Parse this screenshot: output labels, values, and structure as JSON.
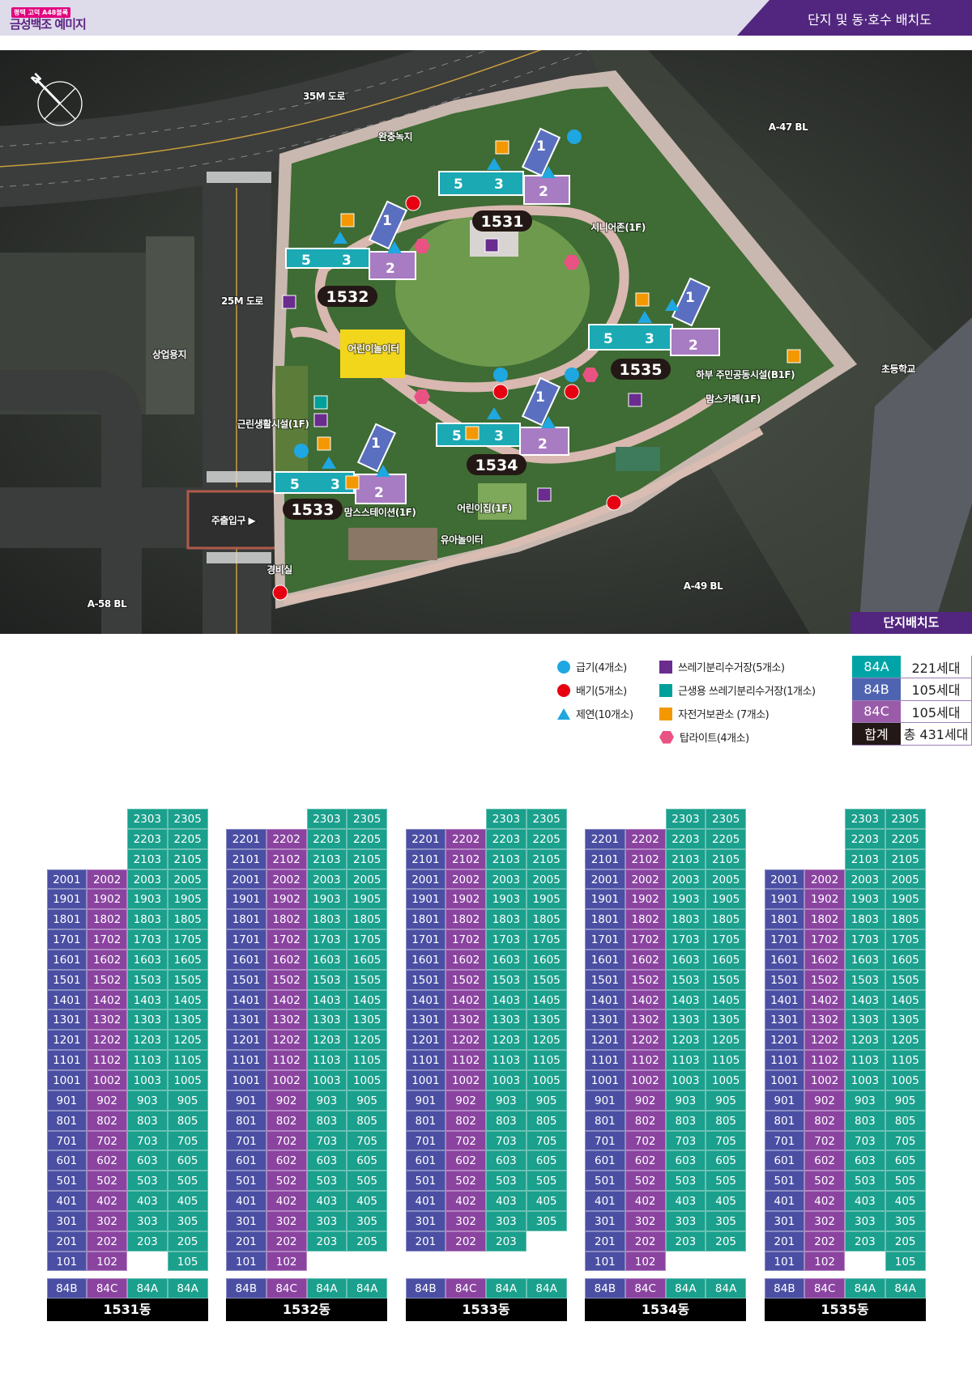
{
  "header": {
    "logo_badge": "평택 고덕 A48블록",
    "logo_name": "금성백조 예미지",
    "title": "단지 및 동·호수 배치도"
  },
  "map": {
    "badge": "단지배치도",
    "compass": "north-compass-icon",
    "labels": {
      "road_35m": "35M 도로",
      "buffer_green": "완충녹지",
      "a47": "A-47 BL",
      "road_25m": "25M 도로",
      "commercial": "상업용지",
      "school": "초등학교",
      "playground": "어린이놀이터",
      "senior": "시니어존(1F)",
      "community": "하부 주민공동시설(B1F)",
      "moms_cafe": "맘스카페(1F)",
      "neighborhood": "근린생활시설(1F)",
      "main_entrance": "주출입구 ▶",
      "moms_station": "맘스스테이션(1F)",
      "daycare": "어린이집(1F)",
      "toddler_play": "유아놀이터",
      "guard": "경비실",
      "a58": "A-58 BL",
      "a49": "A-49 BL"
    },
    "building_tags": [
      "1531",
      "1532",
      "1533",
      "1534",
      "1535"
    ],
    "line_numbers": [
      "1",
      "2",
      "3",
      "5"
    ]
  },
  "legend": {
    "supply": "급기(4개소)",
    "exhaust": "배기(5개소)",
    "smoke": "제연(10개소)",
    "recycle": "쓰레기분리수거장(5개소)",
    "retail_recycle": "근생용 쓰레기분리수거장(1개소)",
    "bike": "자전거보관소 (7개소)",
    "toplight": "탑라이트(4개소)",
    "colors": {
      "supply": "#1ea7e1",
      "exhaust": "#e60012",
      "smoke": "#1ea7e1",
      "recycle": "#6a2c8e",
      "retail_recycle": "#00a09a",
      "bike": "#f39800",
      "toplight": "#e95383"
    }
  },
  "summary": [
    {
      "type": "84A",
      "count": "221세대",
      "color": "#00a4a6"
    },
    {
      "type": "84B",
      "count": "105세대",
      "color": "#4f64b0"
    },
    {
      "type": "84C",
      "count": "105세대",
      "color": "#9a5ca8"
    },
    {
      "type": "합계",
      "count": "총 431세대",
      "color": "#231815"
    }
  ],
  "type_colors": {
    "84A": "#1aa08c",
    "84B": "#4a4fa3",
    "84C": "#8a44a0",
    "blank": "#9a9a9a"
  },
  "buildings": [
    {
      "name": "1531동",
      "types": [
        "84B",
        "84C",
        "84A",
        "84A"
      ],
      "rows": [
        [
          "",
          "",
          "2303",
          "2305"
        ],
        [
          "",
          "",
          "2203",
          "2205"
        ],
        [
          "",
          "",
          "2103",
          "2105"
        ],
        [
          "2001",
          "2002",
          "2003",
          "2005"
        ],
        [
          "1901",
          "1902",
          "1903",
          "1905"
        ],
        [
          "1801",
          "1802",
          "1803",
          "1805"
        ],
        [
          "1701",
          "1702",
          "1703",
          "1705"
        ],
        [
          "1601",
          "1602",
          "1603",
          "1605"
        ],
        [
          "1501",
          "1502",
          "1503",
          "1505"
        ],
        [
          "1401",
          "1402",
          "1403",
          "1405"
        ],
        [
          "1301",
          "1302",
          "1303",
          "1305"
        ],
        [
          "1201",
          "1202",
          "1203",
          "1205"
        ],
        [
          "1101",
          "1102",
          "1103",
          "1105"
        ],
        [
          "1001",
          "1002",
          "1003",
          "1005"
        ],
        [
          "901",
          "902",
          "903",
          "905"
        ],
        [
          "801",
          "802",
          "803",
          "805"
        ],
        [
          "701",
          "702",
          "703",
          "705"
        ],
        [
          "601",
          "602",
          "603",
          "605"
        ],
        [
          "501",
          "502",
          "503",
          "505"
        ],
        [
          "401",
          "402",
          "403",
          "405"
        ],
        [
          "301",
          "302",
          "303",
          "305"
        ],
        [
          "201",
          "202",
          "203",
          "205"
        ],
        [
          "101",
          "102",
          "X",
          "105"
        ]
      ]
    },
    {
      "name": "1532동",
      "types": [
        "84B",
        "84C",
        "84A",
        "84A"
      ],
      "rows": [
        [
          "",
          "",
          "2303",
          "2305"
        ],
        [
          "2201",
          "2202",
          "2203",
          "2205"
        ],
        [
          "2101",
          "2102",
          "2103",
          "2105"
        ],
        [
          "2001",
          "2002",
          "2003",
          "2005"
        ],
        [
          "1901",
          "1902",
          "1903",
          "1905"
        ],
        [
          "1801",
          "1802",
          "1803",
          "1805"
        ],
        [
          "1701",
          "1702",
          "1703",
          "1705"
        ],
        [
          "1601",
          "1602",
          "1603",
          "1605"
        ],
        [
          "1501",
          "1502",
          "1503",
          "1505"
        ],
        [
          "1401",
          "1402",
          "1403",
          "1405"
        ],
        [
          "1301",
          "1302",
          "1303",
          "1305"
        ],
        [
          "1201",
          "1202",
          "1203",
          "1205"
        ],
        [
          "1101",
          "1102",
          "1103",
          "1105"
        ],
        [
          "1001",
          "1002",
          "1003",
          "1005"
        ],
        [
          "901",
          "902",
          "903",
          "905"
        ],
        [
          "801",
          "802",
          "803",
          "805"
        ],
        [
          "701",
          "702",
          "703",
          "705"
        ],
        [
          "601",
          "602",
          "603",
          "605"
        ],
        [
          "501",
          "502",
          "503",
          "505"
        ],
        [
          "401",
          "402",
          "403",
          "405"
        ],
        [
          "301",
          "302",
          "303",
          "305"
        ],
        [
          "201",
          "202",
          "203",
          "205"
        ],
        [
          "101",
          "102",
          "X",
          "X"
        ]
      ]
    },
    {
      "name": "1533동",
      "types": [
        "84B",
        "84C",
        "84A",
        "84A"
      ],
      "rows": [
        [
          "",
          "",
          "2303",
          "2305"
        ],
        [
          "2201",
          "2202",
          "2203",
          "2205"
        ],
        [
          "2101",
          "2102",
          "2103",
          "2105"
        ],
        [
          "2001",
          "2002",
          "2003",
          "2005"
        ],
        [
          "1901",
          "1902",
          "1903",
          "1905"
        ],
        [
          "1801",
          "1802",
          "1803",
          "1805"
        ],
        [
          "1701",
          "1702",
          "1703",
          "1705"
        ],
        [
          "1601",
          "1602",
          "1603",
          "1605"
        ],
        [
          "1501",
          "1502",
          "1503",
          "1505"
        ],
        [
          "1401",
          "1402",
          "1403",
          "1405"
        ],
        [
          "1301",
          "1302",
          "1303",
          "1305"
        ],
        [
          "1201",
          "1202",
          "1203",
          "1205"
        ],
        [
          "1101",
          "1102",
          "1103",
          "1105"
        ],
        [
          "1001",
          "1002",
          "1003",
          "1005"
        ],
        [
          "901",
          "902",
          "903",
          "905"
        ],
        [
          "801",
          "802",
          "803",
          "805"
        ],
        [
          "701",
          "702",
          "703",
          "705"
        ],
        [
          "601",
          "602",
          "603",
          "605"
        ],
        [
          "501",
          "502",
          "503",
          "505"
        ],
        [
          "401",
          "402",
          "403",
          "405"
        ],
        [
          "301",
          "302",
          "303",
          "305"
        ],
        [
          "201",
          "202",
          "203",
          "X"
        ],
        [
          "X",
          "X",
          "X",
          "X"
        ]
      ]
    },
    {
      "name": "1534동",
      "types": [
        "84B",
        "84C",
        "84A",
        "84A"
      ],
      "rows": [
        [
          "",
          "",
          "2303",
          "2305"
        ],
        [
          "2201",
          "2202",
          "2203",
          "2205"
        ],
        [
          "2101",
          "2102",
          "2103",
          "2105"
        ],
        [
          "2001",
          "2002",
          "2003",
          "2005"
        ],
        [
          "1901",
          "1902",
          "1903",
          "1905"
        ],
        [
          "1801",
          "1802",
          "1803",
          "1805"
        ],
        [
          "1701",
          "1702",
          "1703",
          "1705"
        ],
        [
          "1601",
          "1602",
          "1603",
          "1605"
        ],
        [
          "1501",
          "1502",
          "1503",
          "1505"
        ],
        [
          "1401",
          "1402",
          "1403",
          "1405"
        ],
        [
          "1301",
          "1302",
          "1303",
          "1305"
        ],
        [
          "1201",
          "1202",
          "1203",
          "1205"
        ],
        [
          "1101",
          "1102",
          "1103",
          "1105"
        ],
        [
          "1001",
          "1002",
          "1003",
          "1005"
        ],
        [
          "901",
          "902",
          "903",
          "905"
        ],
        [
          "801",
          "802",
          "803",
          "805"
        ],
        [
          "701",
          "702",
          "703",
          "705"
        ],
        [
          "601",
          "602",
          "603",
          "605"
        ],
        [
          "501",
          "502",
          "503",
          "505"
        ],
        [
          "401",
          "402",
          "403",
          "405"
        ],
        [
          "301",
          "302",
          "303",
          "305"
        ],
        [
          "201",
          "202",
          "203",
          "205"
        ],
        [
          "101",
          "102",
          "X",
          "X"
        ]
      ]
    },
    {
      "name": "1535동",
      "types": [
        "84B",
        "84C",
        "84A",
        "84A"
      ],
      "rows": [
        [
          "",
          "",
          "2303",
          "2305"
        ],
        [
          "",
          "",
          "2203",
          "2205"
        ],
        [
          "",
          "",
          "2103",
          "2105"
        ],
        [
          "2001",
          "2002",
          "2003",
          "2005"
        ],
        [
          "1901",
          "1902",
          "1903",
          "1905"
        ],
        [
          "1801",
          "1802",
          "1803",
          "1805"
        ],
        [
          "1701",
          "1702",
          "1703",
          "1705"
        ],
        [
          "1601",
          "1602",
          "1603",
          "1605"
        ],
        [
          "1501",
          "1502",
          "1503",
          "1505"
        ],
        [
          "1401",
          "1402",
          "1403",
          "1405"
        ],
        [
          "1301",
          "1302",
          "1303",
          "1305"
        ],
        [
          "1201",
          "1202",
          "1203",
          "1205"
        ],
        [
          "1101",
          "1102",
          "1103",
          "1105"
        ],
        [
          "1001",
          "1002",
          "1003",
          "1005"
        ],
        [
          "901",
          "902",
          "903",
          "905"
        ],
        [
          "801",
          "802",
          "803",
          "805"
        ],
        [
          "701",
          "702",
          "703",
          "705"
        ],
        [
          "601",
          "602",
          "603",
          "605"
        ],
        [
          "501",
          "502",
          "503",
          "505"
        ],
        [
          "401",
          "402",
          "403",
          "405"
        ],
        [
          "301",
          "302",
          "303",
          "305"
        ],
        [
          "201",
          "202",
          "203",
          "205"
        ],
        [
          "101",
          "102",
          "X",
          "105"
        ]
      ]
    }
  ]
}
